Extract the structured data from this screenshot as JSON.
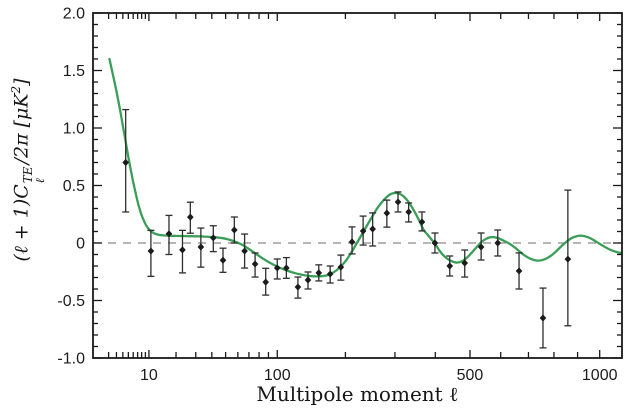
{
  "figure": {
    "background": "#ffffff"
  },
  "chart_data": {
    "type": "line",
    "title": "",
    "xlabel": "Multipole moment ℓ",
    "ylabel": "(ℓ + 1)C_ℓ^TE / 2π [μK²]",
    "ylabel_parts": {
      "pre": "(ℓ + 1)C",
      "sup": "TE",
      "sub": "ℓ",
      "mid": "/2π [μK",
      "exp": "2",
      "close": "]"
    },
    "x_axis": {
      "scale": "compressed-log (ℓ^0.4)",
      "min": 2,
      "max": 1110,
      "labeled_ticks": [
        10,
        100,
        500,
        1000
      ],
      "tick_labels": [
        "10",
        "100",
        "500",
        "1000"
      ],
      "minor_ticks": [
        2,
        3,
        4,
        5,
        6,
        7,
        8,
        9,
        20,
        30,
        40,
        50,
        60,
        70,
        80,
        90,
        200,
        300,
        400,
        600,
        700,
        800,
        900
      ]
    },
    "y_axis": {
      "min": -1.0,
      "max": 2.0,
      "labeled_ticks": [
        -1.0,
        -0.5,
        0,
        0.5,
        1.0,
        1.5,
        2.0
      ],
      "tick_labels": [
        "-1.0",
        "-0.5",
        "0",
        "0.5",
        "1.0",
        "1.5",
        "2.0"
      ],
      "minor_step": 0.1
    },
    "reference_line": {
      "y": 0,
      "style": "dashed",
      "color": "#8a8a8a"
    },
    "legend": "none",
    "series": [
      {
        "name": "theory-curve",
        "type": "line",
        "color": "#3a9e58",
        "points": [
          [
            2.1,
            1.6
          ],
          [
            2.4,
            1.5
          ],
          [
            2.8,
            1.38
          ],
          [
            3.2,
            1.26
          ],
          [
            3.6,
            1.14
          ],
          [
            4.0,
            1.02
          ],
          [
            4.5,
            0.88
          ],
          [
            5.0,
            0.75
          ],
          [
            5.5,
            0.635
          ],
          [
            6.0,
            0.53
          ],
          [
            6.5,
            0.44
          ],
          [
            7.0,
            0.36
          ],
          [
            7.5,
            0.295
          ],
          [
            8.0,
            0.24
          ],
          [
            8.5,
            0.2
          ],
          [
            9.0,
            0.165
          ],
          [
            9.5,
            0.14
          ],
          [
            10,
            0.12
          ],
          [
            11,
            0.095
          ],
          [
            12,
            0.08
          ],
          [
            13,
            0.072
          ],
          [
            15,
            0.066
          ],
          [
            18,
            0.063
          ],
          [
            22,
            0.061
          ],
          [
            27,
            0.059
          ],
          [
            33,
            0.057
          ],
          [
            40,
            0.052
          ],
          [
            45,
            0.046
          ],
          [
            50,
            0.037
          ],
          [
            55,
            0.022
          ],
          [
            60,
            0.002
          ],
          [
            65,
            -0.022
          ],
          [
            70,
            -0.052
          ],
          [
            75,
            -0.083
          ],
          [
            80,
            -0.113
          ],
          [
            85,
            -0.14
          ],
          [
            90,
            -0.165
          ],
          [
            100,
            -0.205
          ],
          [
            110,
            -0.235
          ],
          [
            120,
            -0.258
          ],
          [
            130,
            -0.274
          ],
          [
            140,
            -0.285
          ],
          [
            150,
            -0.29
          ],
          [
            160,
            -0.289
          ],
          [
            170,
            -0.279
          ],
          [
            180,
            -0.254
          ],
          [
            190,
            -0.214
          ],
          [
            200,
            -0.159
          ],
          [
            210,
            -0.089
          ],
          [
            220,
            -0.009
          ],
          [
            230,
            0.071
          ],
          [
            240,
            0.148
          ],
          [
            250,
            0.222
          ],
          [
            260,
            0.292
          ],
          [
            270,
            0.349
          ],
          [
            280,
            0.393
          ],
          [
            290,
            0.424
          ],
          [
            300,
            0.435
          ],
          [
            310,
            0.429
          ],
          [
            320,
            0.405
          ],
          [
            330,
            0.365
          ],
          [
            340,
            0.312
          ],
          [
            350,
            0.25
          ],
          [
            360,
            0.18
          ],
          [
            370,
            0.11
          ],
          [
            380,
            0.07
          ],
          [
            390,
            0.03
          ],
          [
            400,
            -0.01
          ],
          [
            410,
            -0.06
          ],
          [
            420,
            -0.1
          ],
          [
            430,
            -0.13
          ],
          [
            445,
            -0.158
          ],
          [
            460,
            -0.17
          ],
          [
            475,
            -0.16
          ],
          [
            490,
            -0.13
          ],
          [
            505,
            -0.085
          ],
          [
            520,
            -0.038
          ],
          [
            535,
            0.005
          ],
          [
            550,
            0.035
          ],
          [
            565,
            0.05
          ],
          [
            580,
            0.05
          ],
          [
            595,
            0.038
          ],
          [
            610,
            0.02
          ],
          [
            630,
            -0.005
          ],
          [
            650,
            -0.04
          ],
          [
            670,
            -0.08
          ],
          [
            690,
            -0.115
          ],
          [
            710,
            -0.14
          ],
          [
            730,
            -0.152
          ],
          [
            750,
            -0.15
          ],
          [
            770,
            -0.135
          ],
          [
            790,
            -0.107
          ],
          [
            810,
            -0.07
          ],
          [
            830,
            -0.03
          ],
          [
            850,
            0.008
          ],
          [
            870,
            0.038
          ],
          [
            890,
            0.056
          ],
          [
            910,
            0.064
          ],
          [
            930,
            0.06
          ],
          [
            950,
            0.047
          ],
          [
            975,
            0.022
          ],
          [
            1000,
            -0.008
          ],
          [
            1030,
            -0.04
          ],
          [
            1060,
            -0.066
          ],
          [
            1090,
            -0.083
          ],
          [
            1115,
            -0.09
          ]
        ]
      },
      {
        "name": "observed-data",
        "type": "scatter",
        "marker": "diamond",
        "color": "#1b1b1b",
        "error_bars": true,
        "points_format": [
          "ell",
          "value",
          "err_plus",
          "err_minus"
        ],
        "points": [
          [
            4.5,
            0.7,
            0.46,
            0.43
          ],
          [
            10.6,
            -0.07,
            0.18,
            0.22
          ],
          [
            17,
            0.08,
            0.16,
            0.18
          ],
          [
            23,
            -0.06,
            0.17,
            0.2
          ],
          [
            27,
            0.225,
            0.13,
            0.14
          ],
          [
            33,
            -0.035,
            0.165,
            0.175
          ],
          [
            41,
            0.045,
            0.105,
            0.12
          ],
          [
            48,
            -0.15,
            0.105,
            0.105
          ],
          [
            57,
            0.113,
            0.113,
            0.113
          ],
          [
            66,
            -0.07,
            0.148,
            0.148
          ],
          [
            76,
            -0.183,
            0.096,
            0.113
          ],
          [
            87,
            -0.34,
            0.12,
            0.113
          ],
          [
            100,
            -0.217,
            0.078,
            0.096
          ],
          [
            111,
            -0.217,
            0.09,
            0.09
          ],
          [
            126,
            -0.383,
            0.087,
            0.096
          ],
          [
            140,
            -0.322,
            0.07,
            0.078
          ],
          [
            156,
            -0.26,
            0.07,
            0.07
          ],
          [
            174,
            -0.27,
            0.07,
            0.078
          ],
          [
            192,
            -0.21,
            0.105,
            0.113
          ],
          [
            212,
            0.01,
            0.13,
            0.105
          ],
          [
            233,
            0.104,
            0.13,
            0.122
          ],
          [
            252,
            0.122,
            0.14,
            0.148
          ],
          [
            282,
            0.26,
            0.113,
            0.122
          ],
          [
            307,
            0.357,
            0.087,
            0.087
          ],
          [
            332,
            0.27,
            0.078,
            0.087
          ],
          [
            365,
            0.183,
            0.087,
            0.078
          ],
          [
            399,
            0.0,
            0.087,
            0.087
          ],
          [
            440,
            -0.2,
            0.087,
            0.087
          ],
          [
            484,
            -0.174,
            0.113,
            0.122
          ],
          [
            535,
            -0.035,
            0.122,
            0.113
          ],
          [
            590,
            0.0,
            0.113,
            0.113
          ],
          [
            665,
            -0.243,
            0.157,
            0.157
          ],
          [
            756,
            -0.652,
            0.26,
            0.26
          ],
          [
            858,
            -0.14,
            0.6,
            0.58
          ]
        ]
      }
    ]
  },
  "colors": {
    "frame": "#1a1a1a",
    "tick_label": "#1c1c1c",
    "curve": "#3a9e58",
    "marker": "#1b1b1b",
    "error_bar": "#2e2e2e",
    "dashed_line": "#8a8a8a",
    "background": "#ffffff"
  }
}
